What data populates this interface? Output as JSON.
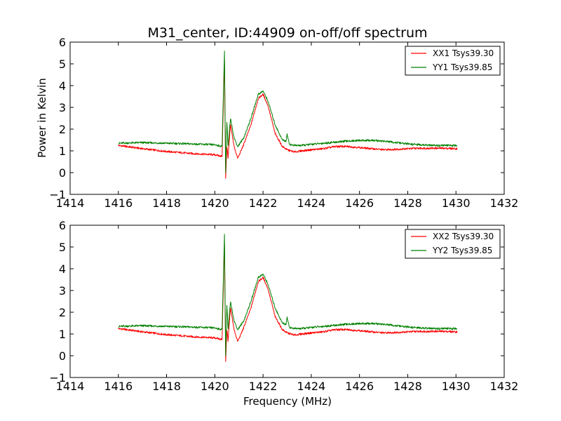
{
  "title": "M31_center, ID:44909 on-off/off spectrum",
  "colors": {
    "xx": "#ff0000",
    "yy": "#008000"
  },
  "chart_data": [
    {
      "type": "line",
      "ylabel": "Power in Kelvin",
      "xlabel": "",
      "xlim": [
        1414,
        1432
      ],
      "ylim": [
        -1,
        6
      ],
      "xticks": [
        "1414",
        "1416",
        "1418",
        "1420",
        "1422",
        "1424",
        "1426",
        "1428",
        "1430",
        "1432"
      ],
      "yticks": [
        "−1",
        "0",
        "1",
        "2",
        "3",
        "4",
        "5",
        "6"
      ],
      "legend_position": "upper right",
      "series": [
        {
          "name": "XX1 Tsys39.30",
          "color": "#ff0000",
          "x": [
            1416.0,
            1417.0,
            1418.0,
            1419.0,
            1420.0,
            1420.3,
            1420.4,
            1420.45,
            1420.5,
            1420.55,
            1420.65,
            1420.8,
            1420.95,
            1421.2,
            1421.5,
            1421.8,
            1422.0,
            1422.2,
            1422.5,
            1422.8,
            1423.0,
            1423.3,
            1423.6,
            1424.0,
            1424.5,
            1425.0,
            1425.5,
            1426.0,
            1426.5,
            1427.0,
            1427.5,
            1428.0,
            1428.5,
            1429.0,
            1429.5,
            1430.05
          ],
          "y": [
            1.25,
            1.1,
            0.97,
            0.88,
            0.82,
            0.75,
            5.2,
            -0.25,
            1.2,
            0.7,
            2.2,
            1.2,
            0.65,
            1.3,
            2.2,
            3.4,
            3.6,
            3.1,
            1.8,
            1.2,
            1.05,
            0.95,
            1.0,
            1.05,
            1.1,
            1.2,
            1.2,
            1.15,
            1.1,
            1.05,
            1.07,
            1.1,
            1.12,
            1.12,
            1.12,
            1.1
          ]
        },
        {
          "name": "YY1 Tsys39.85",
          "color": "#008000",
          "x": [
            1416.0,
            1417.0,
            1418.0,
            1419.0,
            1420.0,
            1420.3,
            1420.4,
            1420.45,
            1420.5,
            1420.55,
            1420.65,
            1420.8,
            1420.95,
            1421.2,
            1421.5,
            1421.8,
            1422.0,
            1422.2,
            1422.5,
            1422.8,
            1422.95,
            1423.0,
            1423.1,
            1423.3,
            1423.6,
            1424.0,
            1424.5,
            1425.0,
            1425.5,
            1426.0,
            1426.5,
            1427.0,
            1427.5,
            1428.0,
            1428.5,
            1429.0,
            1429.5,
            1430.05
          ],
          "y": [
            1.35,
            1.38,
            1.35,
            1.32,
            1.28,
            1.2,
            5.6,
            0.0,
            2.3,
            1.2,
            2.5,
            1.6,
            1.2,
            1.6,
            2.5,
            3.6,
            3.75,
            3.3,
            2.2,
            1.5,
            1.45,
            1.75,
            1.3,
            1.25,
            1.25,
            1.3,
            1.35,
            1.4,
            1.45,
            1.48,
            1.48,
            1.45,
            1.38,
            1.32,
            1.28,
            1.25,
            1.25,
            1.25
          ]
        }
      ]
    },
    {
      "type": "line",
      "ylabel": "",
      "xlabel": "Frequency (MHz)",
      "xlim": [
        1414,
        1432
      ],
      "ylim": [
        -1,
        6
      ],
      "xticks": [
        "1414",
        "1416",
        "1418",
        "1420",
        "1422",
        "1424",
        "1426",
        "1428",
        "1430",
        "1432"
      ],
      "yticks": [
        "−1",
        "0",
        "1",
        "2",
        "3",
        "4",
        "5",
        "6"
      ],
      "legend_position": "upper right",
      "series": [
        {
          "name": "XX2 Tsys39.30",
          "color": "#ff0000",
          "x": [
            1416.0,
            1417.0,
            1418.0,
            1419.0,
            1420.0,
            1420.3,
            1420.4,
            1420.45,
            1420.5,
            1420.55,
            1420.65,
            1420.8,
            1420.95,
            1421.2,
            1421.5,
            1421.8,
            1422.0,
            1422.2,
            1422.5,
            1422.8,
            1423.0,
            1423.3,
            1423.6,
            1424.0,
            1424.5,
            1425.0,
            1425.5,
            1426.0,
            1426.5,
            1427.0,
            1427.5,
            1428.0,
            1428.5,
            1429.0,
            1429.5,
            1430.05
          ],
          "y": [
            1.25,
            1.1,
            0.97,
            0.88,
            0.82,
            0.75,
            5.2,
            -0.25,
            1.2,
            0.7,
            2.2,
            1.2,
            0.65,
            1.3,
            2.2,
            3.4,
            3.6,
            3.1,
            1.8,
            1.2,
            1.05,
            0.95,
            1.0,
            1.05,
            1.1,
            1.2,
            1.2,
            1.15,
            1.1,
            1.05,
            1.07,
            1.1,
            1.12,
            1.12,
            1.12,
            1.1
          ]
        },
        {
          "name": "YY2 Tsys39.85",
          "color": "#008000",
          "x": [
            1416.0,
            1417.0,
            1418.0,
            1419.0,
            1420.0,
            1420.3,
            1420.4,
            1420.45,
            1420.5,
            1420.55,
            1420.65,
            1420.8,
            1420.95,
            1421.2,
            1421.5,
            1421.8,
            1422.0,
            1422.2,
            1422.5,
            1422.8,
            1422.95,
            1423.0,
            1423.1,
            1423.3,
            1423.6,
            1424.0,
            1424.5,
            1425.0,
            1425.5,
            1426.0,
            1426.5,
            1427.0,
            1427.5,
            1428.0,
            1428.5,
            1429.0,
            1429.5,
            1430.05
          ],
          "y": [
            1.35,
            1.38,
            1.35,
            1.32,
            1.28,
            1.2,
            5.6,
            0.0,
            2.3,
            1.2,
            2.5,
            1.6,
            1.2,
            1.6,
            2.5,
            3.6,
            3.75,
            3.3,
            2.2,
            1.5,
            1.45,
            1.75,
            1.3,
            1.25,
            1.25,
            1.3,
            1.35,
            1.4,
            1.45,
            1.48,
            1.48,
            1.45,
            1.38,
            1.32,
            1.28,
            1.25,
            1.25,
            1.25
          ]
        }
      ]
    }
  ]
}
